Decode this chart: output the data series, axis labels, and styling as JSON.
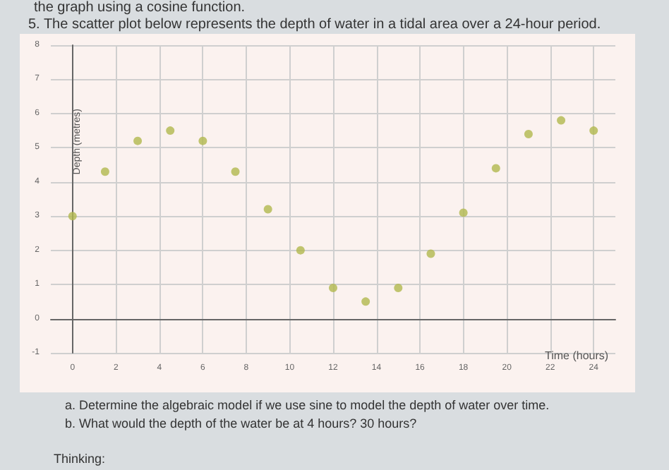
{
  "chart_data": {
    "type": "scatter",
    "title": "5. The scatter plot below represents the depth of water in a tidal area over a 24-hour period.",
    "xlabel": "Time (hours)",
    "ylabel": "Depth (metres)",
    "x": [
      0,
      1.5,
      3,
      4.5,
      6,
      7.5,
      9,
      10.5,
      12,
      13.5,
      15,
      16.5,
      18,
      19.5,
      21,
      22.5,
      24
    ],
    "series": [
      {
        "color": "#b2b84e",
        "values": [
          3,
          4.3,
          5.2,
          5.5,
          5.2,
          4.3,
          3.2,
          2,
          0.9,
          0.5,
          0.9,
          1.9,
          3.1,
          4.4,
          5.4,
          5.8,
          5.5
        ]
      }
    ],
    "xlim": [
      -1,
      25
    ],
    "xticks": [
      0,
      2,
      4,
      6,
      8,
      10,
      12,
      14,
      16,
      18,
      20,
      22,
      24
    ],
    "ylim": [
      -1,
      8
    ],
    "yticks": [
      -1,
      0,
      1,
      2,
      3,
      4,
      5,
      6,
      7,
      8
    ],
    "grid": true,
    "marker": "circle",
    "annotations": [
      "the graph using a cosine function.",
      "a. Determine the algebraic model if we use sine to model the depth of water over time.",
      "b. What would the depth of the water be at 4 hours? 30 hours?",
      "Thinking:"
    ]
  }
}
